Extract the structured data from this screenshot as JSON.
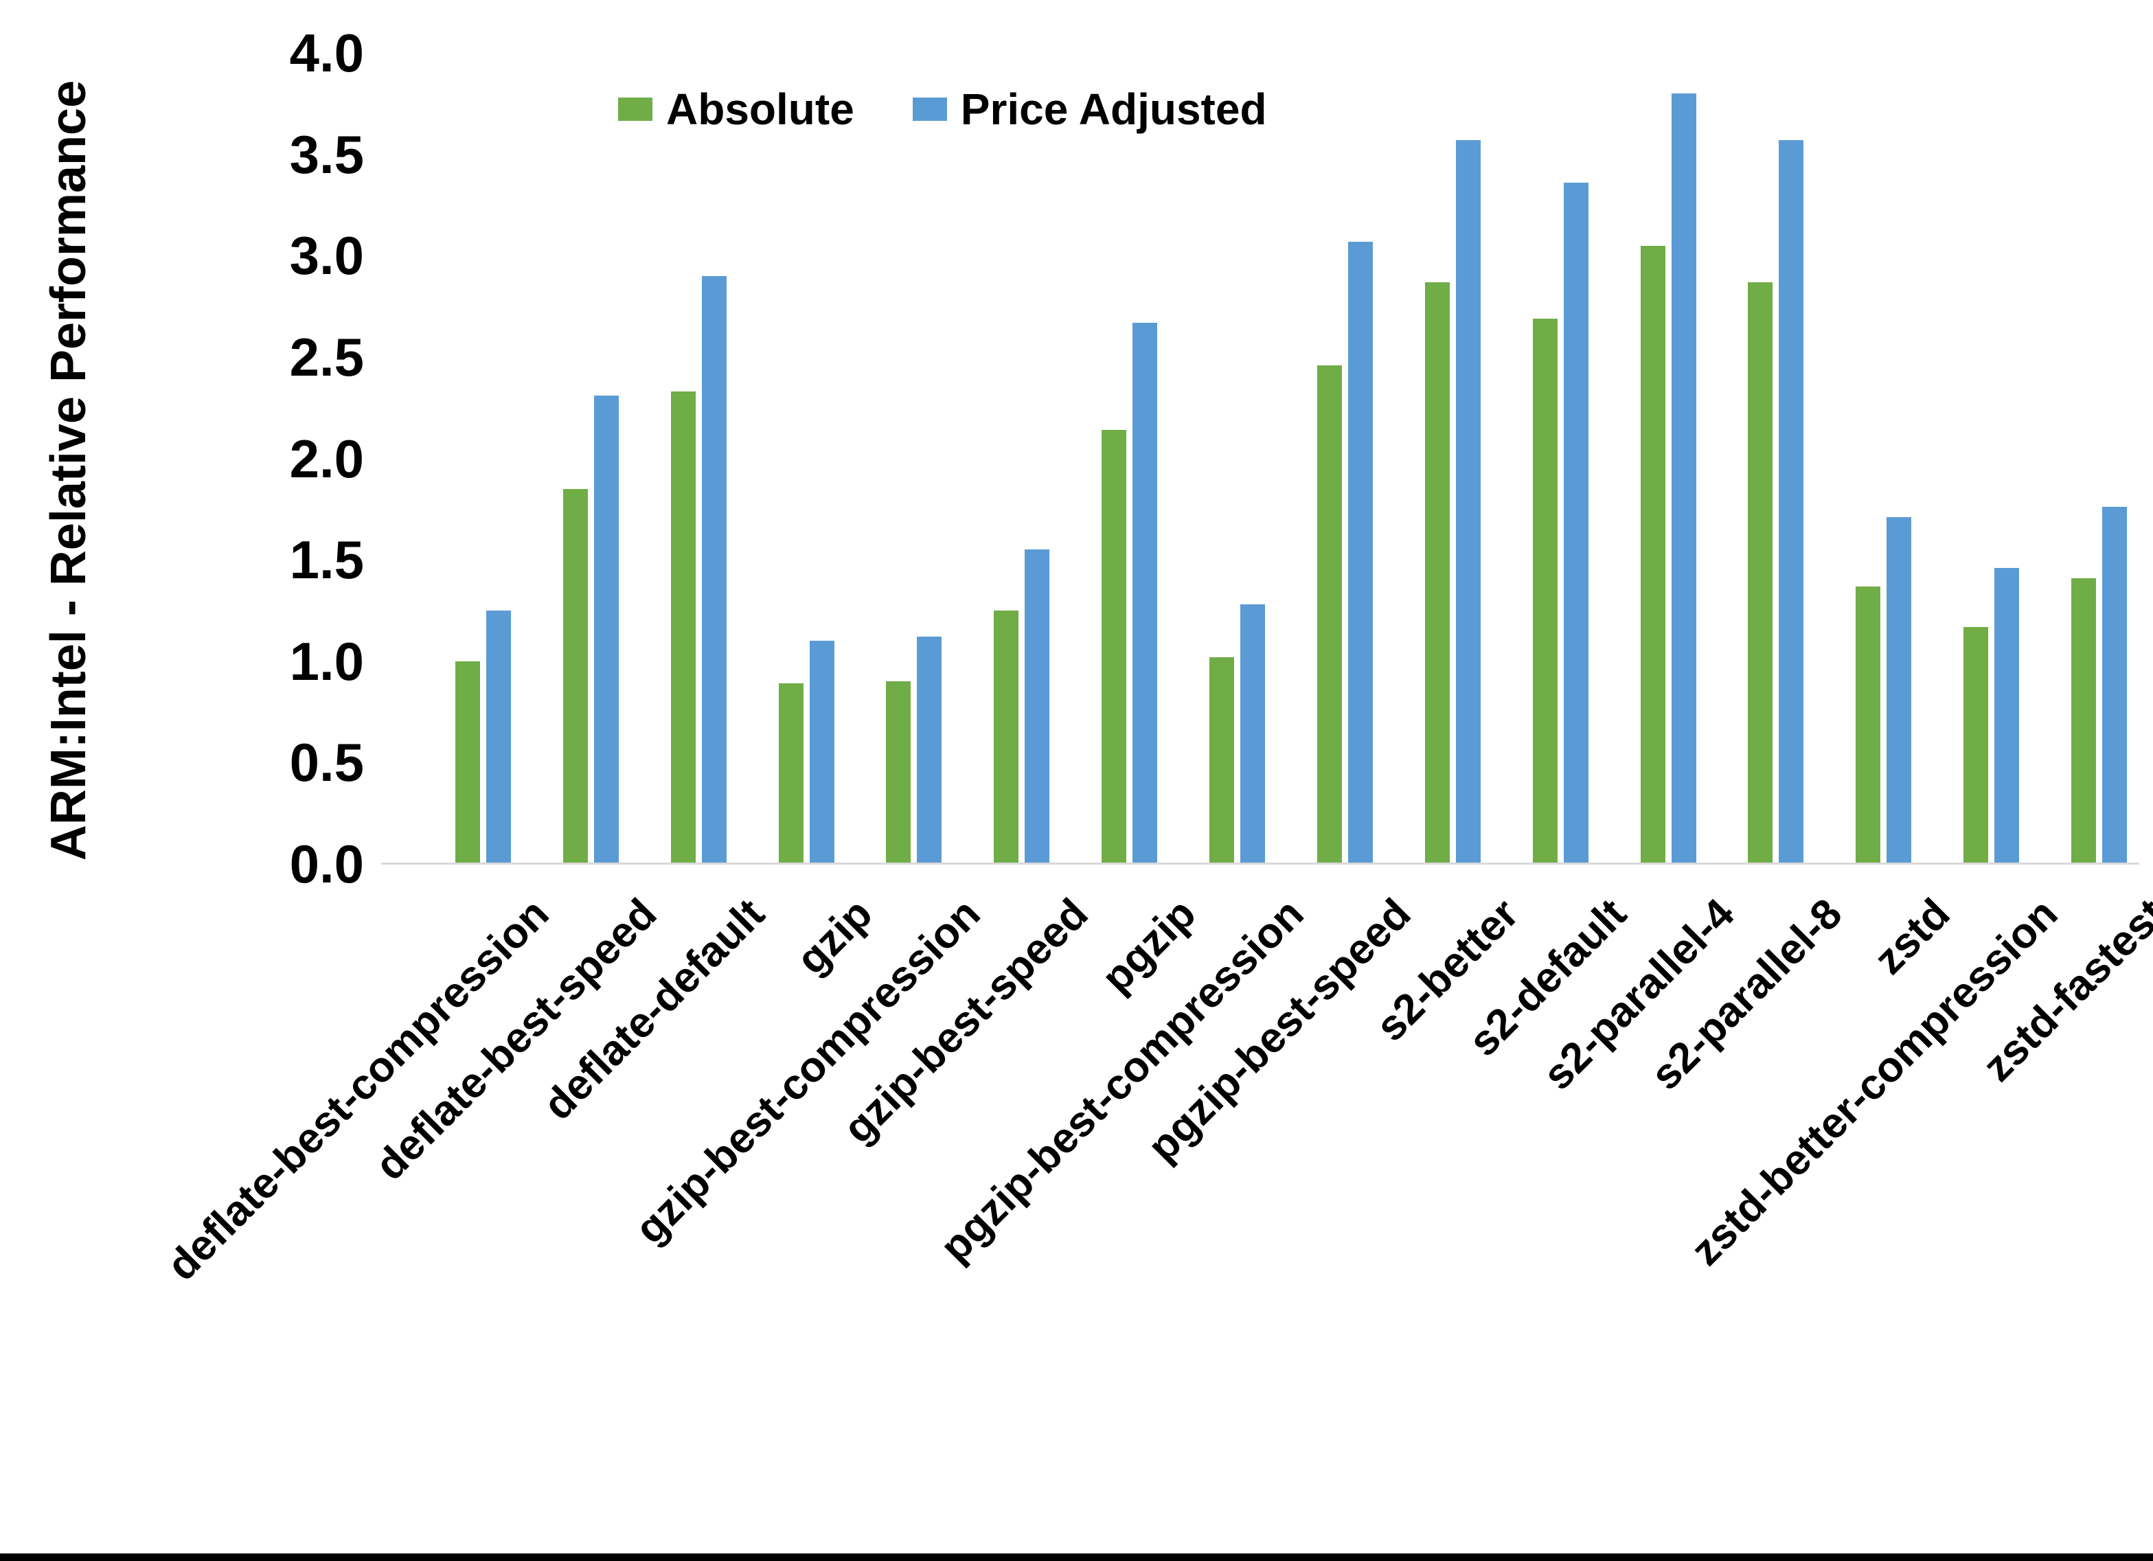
{
  "figure": {
    "y_axis_title": "ARM:Intel - Relative Performance",
    "background_color": "#ffffff",
    "axis_line_color": "#d9d9d9",
    "bottom_bar_color": "#000000"
  },
  "legend": {
    "items": [
      {
        "label": "Absolute",
        "color": "#70AD47"
      },
      {
        "label": "Price Adjusted",
        "color": "#5B9BD5"
      }
    ]
  },
  "chart_data": {
    "type": "bar",
    "title": "",
    "xlabel": "",
    "ylabel": "ARM:Intel - Relative Performance",
    "ylim": [
      0,
      4.0
    ],
    "ytick_step": 0.5,
    "yticks": [
      "4.0",
      "3.5",
      "3.0",
      "2.5",
      "2.0",
      "1.5",
      "1.0",
      "0.5",
      "0.0"
    ],
    "grid": false,
    "legend_position": "top-center-inside",
    "bar_colors": {
      "Absolute": "#70AD47",
      "Price Adjusted": "#5B9BD5"
    },
    "categories": [
      "deflate-best-compression",
      "deflate-best-speed",
      "deflate-default",
      "gzip",
      "gzip-best-compression",
      "gzip-best-speed",
      "pgzip",
      "pgzip-best-compression",
      "pgzip-best-speed",
      "s2-better",
      "s2-default",
      "s2-parallel-4",
      "s2-parallel-8",
      "zstd",
      "zstd-better-compression",
      "zstd-fastest"
    ],
    "series": [
      {
        "name": "Absolute",
        "color": "#70AD47",
        "values": [
          1.0,
          1.85,
          2.33,
          0.89,
          0.9,
          1.25,
          2.14,
          1.02,
          2.46,
          2.87,
          2.69,
          3.05,
          2.87,
          1.37,
          1.17,
          1.41
        ]
      },
      {
        "name": "Price Adjusted",
        "color": "#5B9BD5",
        "values": [
          1.25,
          2.31,
          2.9,
          1.1,
          1.12,
          1.55,
          2.67,
          1.28,
          3.07,
          3.57,
          3.36,
          3.8,
          3.57,
          1.71,
          1.46,
          1.76
        ]
      }
    ]
  }
}
